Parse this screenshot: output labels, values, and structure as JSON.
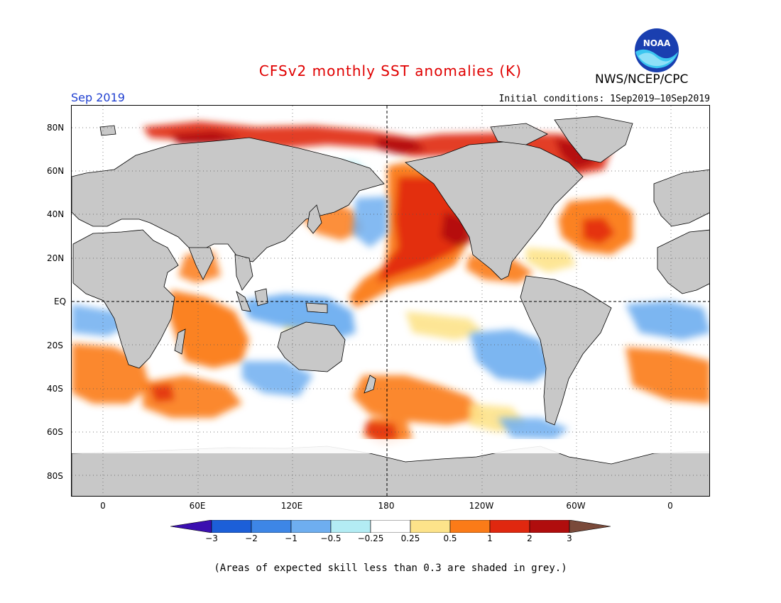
{
  "title": "CFSv2 monthly SST anomalies (K)",
  "month": "Sep 2019",
  "initial_conditions": "Initial conditions: 1Sep2019—10Sep2019",
  "agency": "NWS/NCEP/CPC",
  "logo_text": "NOAA",
  "footnote": "(Areas of expected skill less than 0.3 are shaded in grey.)",
  "map": {
    "lon_range": [
      -20,
      380
    ],
    "lat_range": [
      -90,
      90
    ],
    "lat_labels": [
      "80N",
      "60N",
      "40N",
      "20N",
      "EQ",
      "20S",
      "40S",
      "60S",
      "80S"
    ],
    "lon_labels": [
      "0",
      "60E",
      "120E",
      "180",
      "120W",
      "60W",
      "0"
    ],
    "colors": {
      "land_low_skill": "#c8c8c8",
      "ocean_neutral": "#ffffff",
      "coastline": "#000000"
    }
  },
  "colorbar": {
    "labels": [
      "−3",
      "−2",
      "−1",
      "−0.5",
      "−0.25",
      "0.25",
      "0.5",
      "1",
      "2",
      "3"
    ],
    "colors": [
      "#3b0fb0",
      "#1c5fd8",
      "#3d86e6",
      "#6eaef0",
      "#b3ecf4",
      "#ffffff",
      "#fde38a",
      "#fb7b18",
      "#e0280f",
      "#b00d0d",
      "#7a4a3a"
    ]
  }
}
